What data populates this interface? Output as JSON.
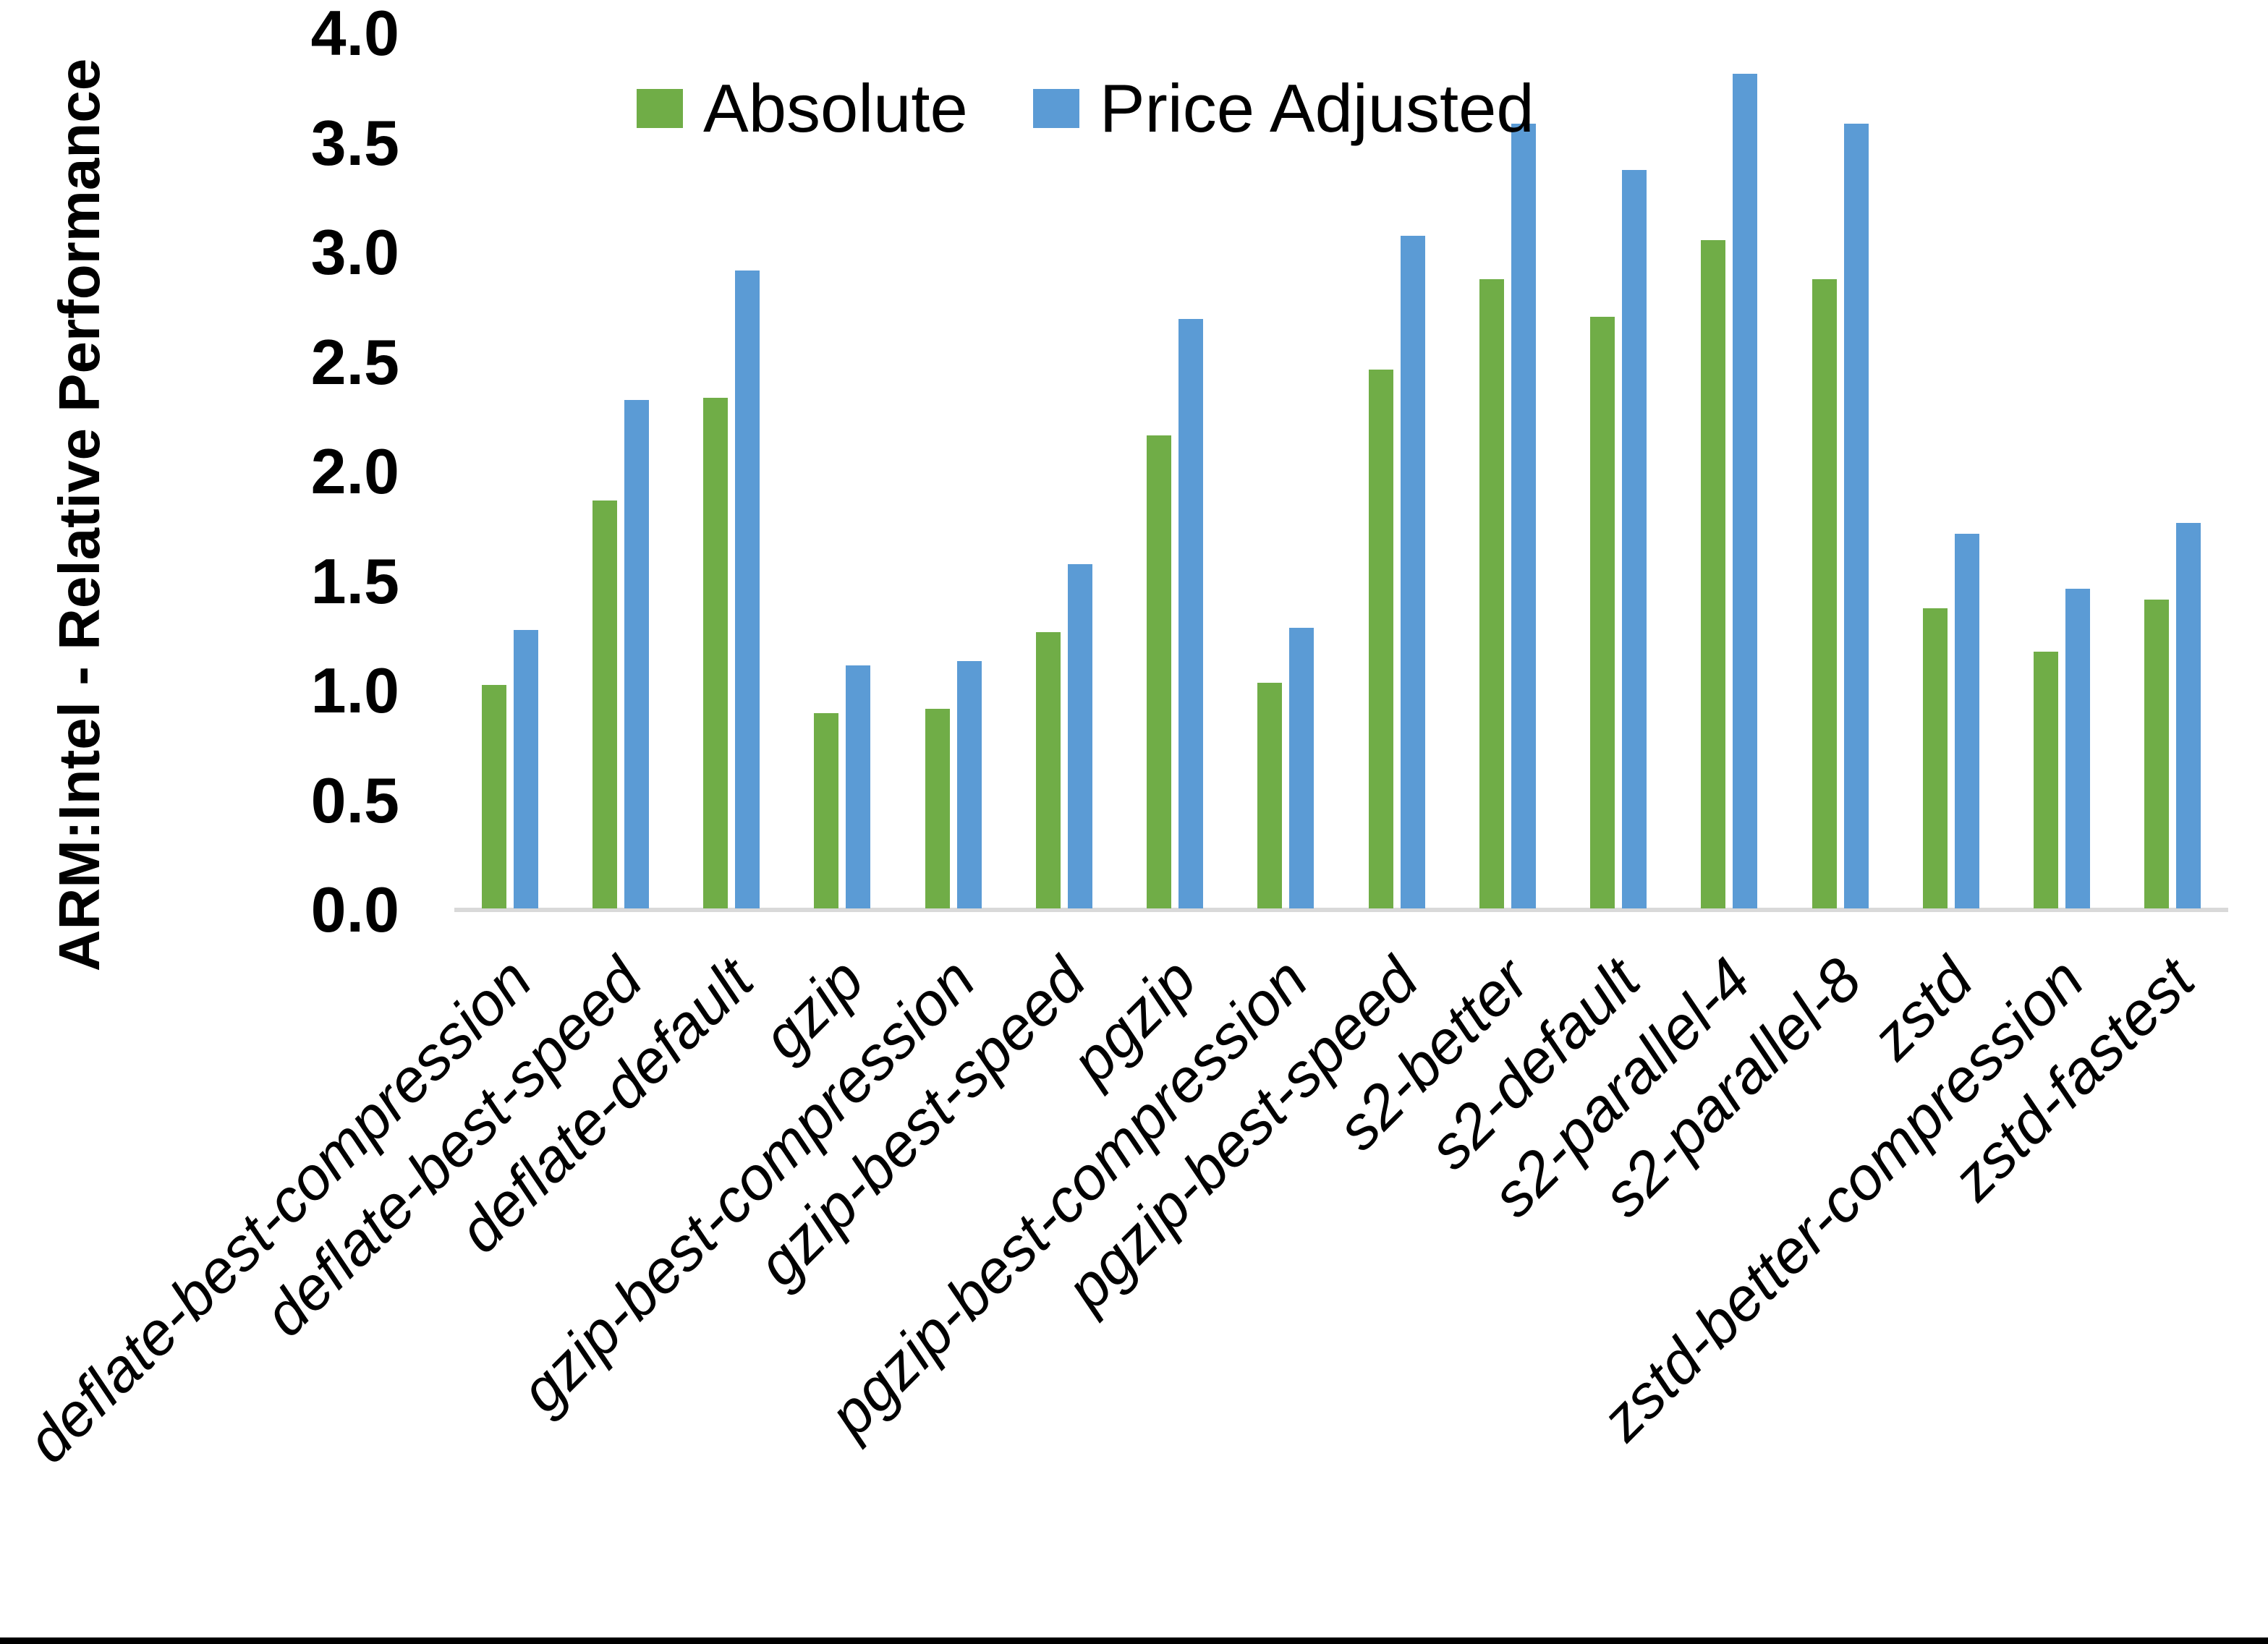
{
  "y_axis": {
    "title": "ARM:Intel - Relative Performance",
    "tick_labels": [
      "0.0",
      "0.5",
      "1.0",
      "1.5",
      "2.0",
      "2.5",
      "3.0",
      "3.5",
      "4.0"
    ]
  },
  "legend": {
    "items": [
      {
        "label": "Absolute",
        "color": "#70AD47"
      },
      {
        "label": "Price Adjusted",
        "color": "#5B9BD5"
      }
    ]
  },
  "chart_data": {
    "type": "bar",
    "title": "",
    "xlabel": "",
    "ylabel": "ARM:Intel - Relative Performance",
    "ylim": [
      0.0,
      4.0
    ],
    "ytick_step": 0.5,
    "ytick_labels": [
      "0.0",
      "0.5",
      "1.0",
      "1.5",
      "2.0",
      "2.5",
      "3.0",
      "3.5",
      "4.0"
    ],
    "grid": false,
    "legend_position": "top",
    "categories": [
      "deflate-best-compression",
      "deflate-best-speed",
      "deflate-default",
      "gzip",
      "gzip-best-compression",
      "gzip-best-speed",
      "pgzip",
      "pgzip-best-compression",
      "pgzip-best-speed",
      "s2-better",
      "s2-default",
      "s2-parallel-4",
      "s2-parallel-8",
      "zstd",
      "zstd-better-compression",
      "zstd-fastest"
    ],
    "series": [
      {
        "name": "Absolute",
        "color": "#70AD47",
        "values": [
          1.02,
          1.86,
          2.33,
          0.89,
          0.91,
          1.26,
          2.16,
          1.03,
          2.46,
          2.87,
          2.7,
          3.05,
          2.87,
          1.37,
          1.17,
          1.41
        ]
      },
      {
        "name": "Price Adjusted",
        "color": "#5B9BD5",
        "values": [
          1.27,
          2.32,
          2.91,
          1.11,
          1.13,
          1.57,
          2.69,
          1.28,
          3.07,
          3.58,
          3.37,
          3.81,
          3.58,
          1.71,
          1.46,
          1.76
        ]
      }
    ],
    "axis_line_color": "#D9D9D9",
    "text_color": "#000000",
    "background": "#FFFFFF",
    "bottom_border_color": "#000000"
  }
}
